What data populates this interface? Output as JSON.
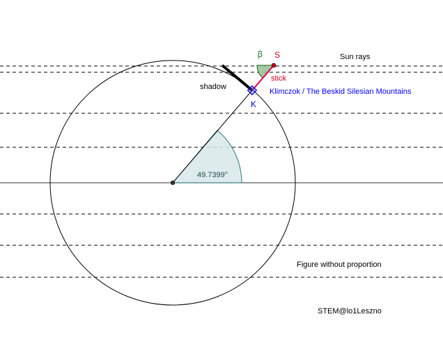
{
  "labels": {
    "sun_rays": "Sun rays",
    "shadow": "shadow",
    "beta": "β",
    "point_s": "S",
    "stick": "stick",
    "point_k": "K",
    "place": "Klimczok / The Beskid Silesian Mountains",
    "latitude_angle": "49.7399°",
    "note": "Figure without proportion",
    "credit": "STEM@lo1Leszno"
  },
  "colors": {
    "stick": "#e0004c",
    "point_s": "#d0021b",
    "point_k": "#0000cc",
    "place": "#0000ff",
    "beta": "#1b6b1b",
    "beta_fill": "#9bc29b",
    "angle_fill": "#d8e8ea",
    "angle_stroke": "#2a7a7a",
    "angle_text": "#1f4f4f",
    "line": "#000000"
  }
}
